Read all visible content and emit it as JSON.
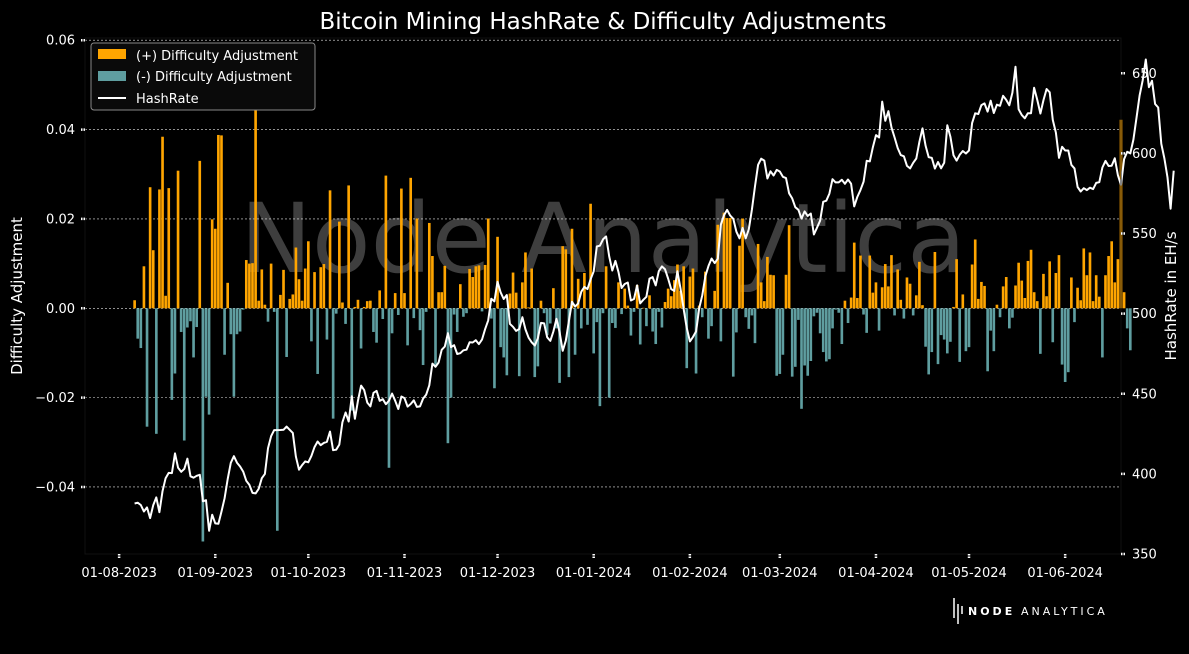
{
  "chart_data": {
    "type": "bar+line",
    "title": "Bitcoin Mining HashRate & Difficulty Adjustments",
    "xlabel": "",
    "ylabel_left": "Difficulty Adjustment",
    "ylabel_right": "HashRate in EH/s",
    "ylim_left": [
      -0.055,
      0.0605
    ],
    "ylim_right": [
      350,
      672
    ],
    "y_ticks_left": [
      "0.06",
      "0.04",
      "0.02",
      "0.00",
      "−0.02",
      "−0.04"
    ],
    "y_tick_values_left": [
      0.06,
      0.04,
      0.02,
      0.0,
      -0.02,
      -0.04
    ],
    "y_ticks_right": [
      "650",
      "600",
      "550",
      "500",
      "450",
      "400",
      "350"
    ],
    "y_tick_values_right": [
      650,
      600,
      550,
      500,
      450,
      400,
      350
    ],
    "x_ticks": [
      "01-08-2023",
      "01-09-2023",
      "01-10-2023",
      "01-11-2023",
      "01-12-2023",
      "01-01-2024",
      "01-02-2024",
      "01-03-2024",
      "01-04-2024",
      "01-05-2024",
      "01-06-2024"
    ],
    "x_tick_days": [
      0,
      31,
      61,
      92,
      122,
      153,
      184,
      213,
      244,
      274,
      305
    ],
    "x_range_days": [
      -11,
      323
    ],
    "bars_start_day": 5,
    "difficulty_adjustment": [
      0.0018,
      -0.0068,
      -0.0089,
      0.0094,
      -0.0265,
      0.0271,
      0.013,
      -0.0281,
      0.0266,
      0.0384,
      0.0028,
      0.0269,
      -0.0205,
      -0.0146,
      0.0308,
      -0.0053,
      -0.0296,
      -0.0043,
      -0.0029,
      -0.011,
      -0.0042,
      0.033,
      -0.0522,
      -0.0198,
      -0.0238,
      0.0199,
      0.0178,
      0.0388,
      0.0387,
      -0.0104,
      0.0057,
      -0.0058,
      -0.0198,
      -0.0058,
      -0.0052,
      -0.0003,
      0.0108,
      0.01,
      0.0101,
      0.0492,
      0.0017,
      0.0087,
      0.0008,
      -0.003,
      0.01,
      -0.0008,
      -0.0498,
      0.003,
      0.0086,
      -0.0109,
      0.0021,
      0.0031,
      0.0136,
      0.0065,
      0.0017,
      0.0089,
      0.015,
      -0.0074,
      0.0081,
      -0.0147,
      0.0092,
      0.0099,
      -0.007,
      0.0264,
      -0.0247,
      -0.0012,
      0.0194,
      0.0013,
      -0.0035,
      0.0275,
      -0.0229,
      0.0003,
      0.0019,
      -0.009,
      0.0003,
      0.0016,
      0.0017,
      -0.0053,
      -0.0077,
      0.004,
      -0.0024,
      0.0297,
      -0.0357,
      -0.0056,
      0.0034,
      -0.0015,
      0.0268,
      0.0034,
      -0.0083,
      0.0292,
      -0.0022,
      0.0201,
      -0.0049,
      -0.0127,
      -0.0008,
      0.0191,
      0.0117,
      -0.0128,
      0.0036,
      0.0036,
      0.0095,
      -0.0302,
      -0.02,
      -0.0014,
      -0.0053,
      0.0054,
      -0.0019,
      -0.0011,
      0.0088,
      0.007,
      0.0094,
      0.0096,
      -0.0007,
      0.0097,
      0.0201,
      -0.0023,
      -0.0179,
      0.016,
      -0.0087,
      -0.011,
      -0.015,
      0.0033,
      0.008,
      0.0035,
      -0.0152,
      0.0058,
      0.0125,
      0.0002,
      0.0089,
      -0.0154,
      -0.013,
      0.0017,
      -0.0011,
      -0.006,
      -0.0034,
      0.0045,
      -0.0045,
      -0.0167,
      0.0139,
      0.0132,
      -0.0154,
      0.0178,
      -0.0104,
      0.0066,
      -0.0045,
      0.0079,
      -0.0037,
      0.0234,
      -0.0101,
      -0.0031,
      -0.0219,
      -0.0011,
      0.0094,
      -0.02,
      -0.0033,
      -0.0044,
      0.0058,
      -0.0013,
      0.0044,
      0.0006,
      -0.0061,
      -0.0008,
      0.0052,
      -0.0081,
      0.0001,
      -0.004,
      0.0029,
      -0.0052,
      -0.008,
      -0.0008,
      -0.0043,
      0.0014,
      0.0044,
      0.0027,
      0.0063,
      0.0098,
      0.0039,
      0.0094,
      -0.0134,
      0.0071,
      0.0089,
      -0.0146,
      0.0006,
      -0.002,
      0.0082,
      -0.0068,
      -0.004,
      0.0039,
      0.0187,
      -0.0074,
      0.0214,
      0.0202,
      0.0202,
      -0.0153,
      -0.0054,
      0.014,
      0.0201,
      -0.002,
      -0.0046,
      -0.0016,
      -0.0078,
      0.0144,
      0.0058,
      0.0016,
      0.0115,
      0.0075,
      0.0074,
      -0.0151,
      -0.0147,
      -0.0104,
      0.0075,
      0.0186,
      -0.0153,
      -0.0131,
      -0.0026,
      -0.0225,
      -0.0128,
      -0.0151,
      -0.0118,
      -0.0018,
      -0.001,
      -0.0056,
      -0.0098,
      -0.0119,
      -0.0114,
      -0.0045,
      -0.0003,
      -0.001,
      -0.008,
      0.0017,
      -0.0033,
      0.0024,
      0.0147,
      0.0023,
      0.0118,
      -0.0014,
      -0.0055,
      0.0118,
      0.0035,
      0.0058,
      -0.005,
      0.0047,
      0.0099,
      0.0049,
      0.0119,
      -0.0016,
      0.0087,
      0.0019,
      -0.0023,
      0.0069,
      0.0055,
      -0.0016,
      0.0029,
      0.0104,
      0.0007,
      -0.0086,
      -0.0148,
      -0.0098,
      0.0126,
      -0.0125,
      -0.006,
      -0.007,
      -0.0101,
      -0.0075,
      0.0003,
      0.011,
      -0.012,
      0.0031,
      -0.0096,
      -0.0087,
      0.0098,
      0.0154,
      0.0021,
      0.0059,
      0.005,
      -0.0141,
      -0.005,
      -0.0096,
      0.0008,
      -0.002,
      0.0049,
      0.007,
      -0.0045,
      -0.0021,
      0.0051,
      0.0102,
      0.0062,
      0.0023,
      0.0106,
      0.0131,
      0.0036,
      0.0016,
      -0.0102,
      0.0077,
      0.0027,
      0.0105,
      -0.0076,
      0.0079,
      0.0119,
      -0.0126,
      -0.0165,
      -0.0143,
      0.0069,
      -0.0031,
      0.0046,
      0.0018,
      0.0134,
      0.0074,
      0.0125,
      0.0016,
      0.0074,
      0.0026,
      -0.011,
      0.0074,
      0.0117,
      0.015,
      0.0058,
      0.011,
      0.0422,
      0.0036,
      -0.0045,
      -0.0094
    ],
    "hashrate_eh_s": [
      381.5,
      382.0,
      380.6,
      376.5,
      379.1,
      372.4,
      380.4,
      385.3,
      376.1,
      389.1,
      397.3,
      400.6,
      400.5,
      412.8,
      403.8,
      401.3,
      403.1,
      409.5,
      398.5,
      397.6,
      398.8,
      399.4,
      382.9,
      383.6,
      364.5,
      374.5,
      369.1,
      368.9,
      376.5,
      384.8,
      396.8,
      406.9,
      411.0,
      407.0,
      404.6,
      401.4,
      395.7,
      393.1,
      388.1,
      387.8,
      390.7,
      397.3,
      400.0,
      416.0,
      423.5,
      427.3,
      427.3,
      427.4,
      427.5,
      429.5,
      427.5,
      425.6,
      410.7,
      402.6,
      405.5,
      407.8,
      407.2,
      411.2,
      416.7,
      420.2,
      417.9,
      419.3,
      420.0,
      426.4,
      414.8,
      415.1,
      418.3,
      432.2,
      438.3,
      432.7,
      448.4,
      434.4,
      445.7,
      455.1,
      452.3,
      444.5,
      442.1,
      450.6,
      451.8,
      445.6,
      446.6,
      443.5,
      445.7,
      450.1,
      445.6,
      440.5,
      448.3,
      447.3,
      442.0,
      443.6,
      445.9,
      441.8,
      442.1,
      447.0,
      449.5,
      455.3,
      468.8,
      466.8,
      469.5,
      477.4,
      479.4,
      487.8,
      479.1,
      480.3,
      474.8,
      475.3,
      477.1,
      477.5,
      482.1,
      482.0,
      483.4,
      481.0,
      483.8,
      490.3,
      495.8,
      509.3,
      507.6,
      519.9,
      513.3,
      509.1,
      511.6,
      493.6,
      491.8,
      489.2,
      490.4,
      497.8,
      490.1,
      485.0,
      482.1,
      480.1,
      484.8,
      494.2,
      493.9,
      485.2,
      483.0,
      488.9,
      496.8,
      488.4,
      476.8,
      483.1,
      495.4,
      507.4,
      504.4,
      506.4,
      513.7,
      516.7,
      515.3,
      521.4,
      526.4,
      541.9,
      542.4,
      546.3,
      548.2,
      535.7,
      526.9,
      532.9,
      525.9,
      516.0,
      518.5,
      519.4,
      508.2,
      509.1,
      517.6,
      506.4,
      508.6,
      510.5,
      521.8,
      522.8,
      517.6,
      526.5,
      529.5,
      527.7,
      521.9,
      515.3,
      514.2,
      526.4,
      515.7,
      503.1,
      491.2,
      482.7,
      485.5,
      488.9,
      503.4,
      511.5,
      523.5,
      529.8,
      534.4,
      531.5,
      534.3,
      555.6,
      561.4,
      564.7,
      561.2,
      559.2,
      551.1,
      547.0,
      553.5,
      547.0,
      552.6,
      564.9,
      579.5,
      592.9,
      596.7,
      595.5,
      584.3,
      588.8,
      586.2,
      589.7,
      588.7,
      585.4,
      584.6,
      575.1,
      571.9,
      566.4,
      564.8,
      559.3,
      563.8,
      561.0,
      562.5,
      549.4,
      553.6,
      558.0,
      569.8,
      570.5,
      574.9,
      583.9,
      581.9,
      581.9,
      583.5,
      581.0,
      583.7,
      581.1,
      566.9,
      572.8,
      577.0,
      582.4,
      595.4,
      595.0,
      603.9,
      611.4,
      609.9,
      632.3,
      620.3,
      626.3,
      616.1,
      609.9,
      603.3,
      598.9,
      598.2,
      592.2,
      590.6,
      594.1,
      596.8,
      607.2,
      615.6,
      604.7,
      597.6,
      597.2,
      590.5,
      594.6,
      590.7,
      594.1,
      617.5,
      610.4,
      598.8,
      595.5,
      599.1,
      601.5,
      599.9,
      601.8,
      618.9,
      625.0,
      624.6,
      630.1,
      631.2,
      626.1,
      632.9,
      625.2,
      630.4,
      629.7,
      635.9,
      633.4,
      630.0,
      637.8,
      654.0,
      627.6,
      624.0,
      621.9,
      625.1,
      625.0,
      640.9,
      633.3,
      624.9,
      633.3,
      640.2,
      638.1,
      620.8,
      612.9,
      597.2,
      604.1,
      601.8,
      601.8,
      592.8,
      590.6,
      579.0,
      576.2,
      578.3,
      577.1,
      578.6,
      577.7,
      581.6,
      582.0,
      591.2,
      595.3,
      592.1,
      592.3,
      596.9,
      586.4,
      580.3,
      596.4,
      601.0,
      600.0,
      608.6,
      622.2,
      636.1,
      645.6,
      658.6,
      641.3,
      645.3,
      630.8,
      628.6,
      606.0,
      596.8,
      585.0,
      565.5,
      589.2
    ],
    "legend": [
      {
        "label": "(+) Difficulty Adjustment",
        "color": "#ffa500"
      },
      {
        "label": "(-) Difficulty Adjustment",
        "color": "#5f9ea0"
      },
      {
        "label": "HashRate",
        "color": "#ffffff"
      }
    ],
    "legend_position": "top-left",
    "grid": true,
    "watermark": "Node Analytica",
    "branding": {
      "bold": "NODE",
      "light": "ANALYTICA"
    }
  },
  "colors": {
    "background": "#000000",
    "positive": "#ffa500",
    "negative": "#5f9ea0",
    "line": "#ffffff",
    "grid": "#ffffff"
  }
}
